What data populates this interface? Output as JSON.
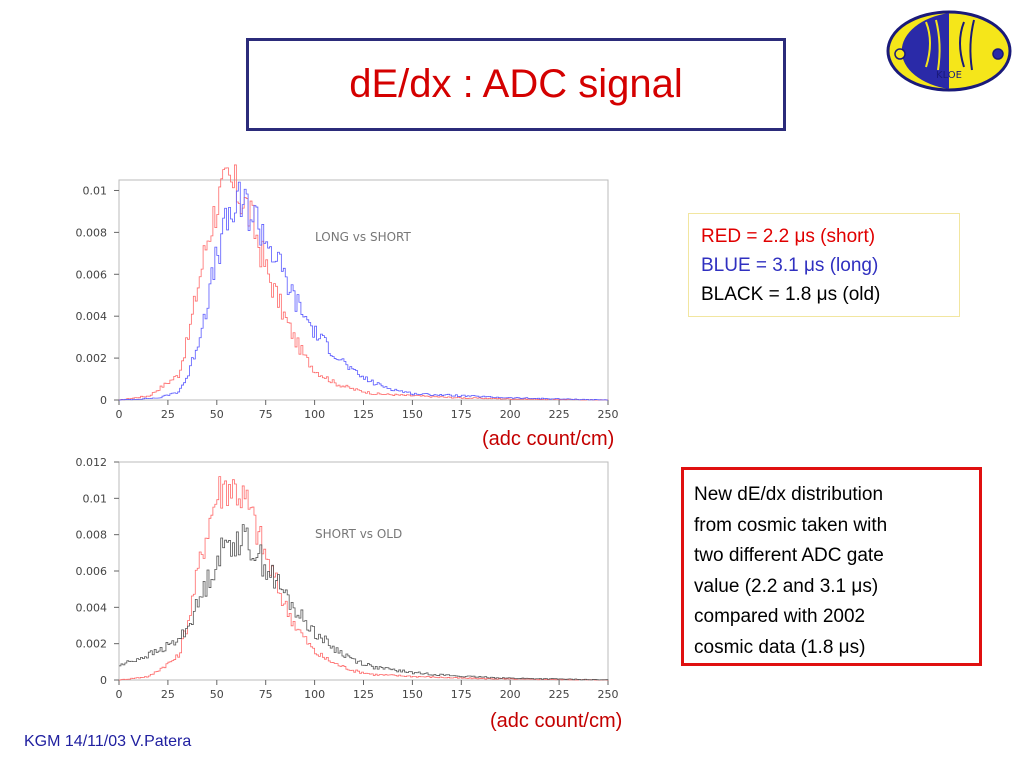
{
  "slide": {
    "title": "dE/dx : ADC signal",
    "footer": "KGM 14/11/03 V.Patera",
    "logo_text": "KLOE"
  },
  "legend": {
    "red": "RED   = 2.2 μs (short)",
    "blue": "BLUE = 3.1 μs (long)",
    "black": "BLACK = 1.8 μs (old)"
  },
  "note": {
    "lines": [
      "New dE/dx distribution",
      "from cosmic taken with",
      "two different ADC gate",
      "value (2.2 and 3.1 μs)",
      "compared with 2002",
      "cosmic data (1.8 μs)"
    ]
  },
  "colors": {
    "red": "#ff6a6a",
    "blue": "#5a5aff",
    "black": "#555555",
    "title": "#d40000"
  },
  "chart_data": [
    {
      "type": "line",
      "annotation": "LONG vs SHORT",
      "xlabel": "(adc count/cm)",
      "xlim": [
        0,
        250
      ],
      "ylim": [
        0,
        0.0105
      ],
      "xticks": [
        "0",
        "25",
        "50",
        "75",
        "100",
        "125",
        "150",
        "175",
        "200",
        "225",
        "250"
      ],
      "yticks": [
        "0",
        "0.002",
        "0.004",
        "0.006",
        "0.008",
        "0.01"
      ],
      "series": [
        {
          "color": "red",
          "x": [
            0,
            15,
            30,
            35,
            40,
            45,
            50,
            55,
            60,
            65,
            70,
            75,
            80,
            85,
            90,
            95,
            100,
            110,
            120,
            130,
            150,
            175,
            200,
            250
          ],
          "y": [
            0,
            0.0002,
            0.0012,
            0.003,
            0.0055,
            0.0078,
            0.0095,
            0.0103,
            0.01,
            0.0092,
            0.0078,
            0.0062,
            0.005,
            0.0038,
            0.0028,
            0.002,
            0.0014,
            0.0008,
            0.0005,
            0.0003,
            0.0002,
            0.0001,
            5e-05,
            0
          ]
        },
        {
          "color": "blue",
          "x": [
            0,
            20,
            30,
            35,
            40,
            45,
            50,
            55,
            60,
            65,
            70,
            75,
            80,
            85,
            90,
            100,
            110,
            120,
            130,
            140,
            150,
            175,
            200,
            250
          ],
          "y": [
            0,
            0.0001,
            0.0004,
            0.0012,
            0.0028,
            0.0048,
            0.007,
            0.0085,
            0.0093,
            0.0092,
            0.0086,
            0.0077,
            0.0067,
            0.0057,
            0.0047,
            0.0032,
            0.0022,
            0.0013,
            0.0008,
            0.0005,
            0.0003,
            0.0002,
            0.0001,
            0
          ]
        }
      ]
    },
    {
      "type": "line",
      "annotation": "SHORT vs OLD",
      "xlabel": "(adc count/cm)",
      "xlim": [
        0,
        250
      ],
      "ylim": [
        0,
        0.012
      ],
      "xticks": [
        "0",
        "25",
        "50",
        "75",
        "100",
        "125",
        "150",
        "175",
        "200",
        "225",
        "250"
      ],
      "yticks": [
        "0",
        "0.002",
        "0.004",
        "0.006",
        "0.008",
        "0.01",
        "0.012"
      ],
      "series": [
        {
          "color": "red",
          "x": [
            0,
            15,
            30,
            35,
            40,
            45,
            50,
            55,
            60,
            65,
            70,
            75,
            80,
            85,
            90,
            95,
            100,
            110,
            120,
            130,
            150,
            175,
            200,
            250
          ],
          "y": [
            0,
            0.0002,
            0.0013,
            0.0033,
            0.006,
            0.0085,
            0.0103,
            0.0108,
            0.0105,
            0.0097,
            0.0083,
            0.0067,
            0.0053,
            0.004,
            0.003,
            0.0022,
            0.0015,
            0.0009,
            0.0005,
            0.0003,
            0.0002,
            0.0001,
            5e-05,
            0
          ]
        },
        {
          "color": "black",
          "x": [
            0,
            10,
            20,
            30,
            35,
            40,
            45,
            50,
            55,
            60,
            65,
            70,
            75,
            80,
            85,
            90,
            100,
            110,
            120,
            130,
            150,
            175,
            200,
            250
          ],
          "y": [
            0.0008,
            0.0012,
            0.0016,
            0.0022,
            0.003,
            0.0042,
            0.0055,
            0.0067,
            0.0075,
            0.0078,
            0.0076,
            0.007,
            0.0062,
            0.0054,
            0.0046,
            0.0038,
            0.0026,
            0.0017,
            0.0011,
            0.0007,
            0.0004,
            0.0002,
            0.0001,
            0
          ]
        }
      ]
    }
  ]
}
